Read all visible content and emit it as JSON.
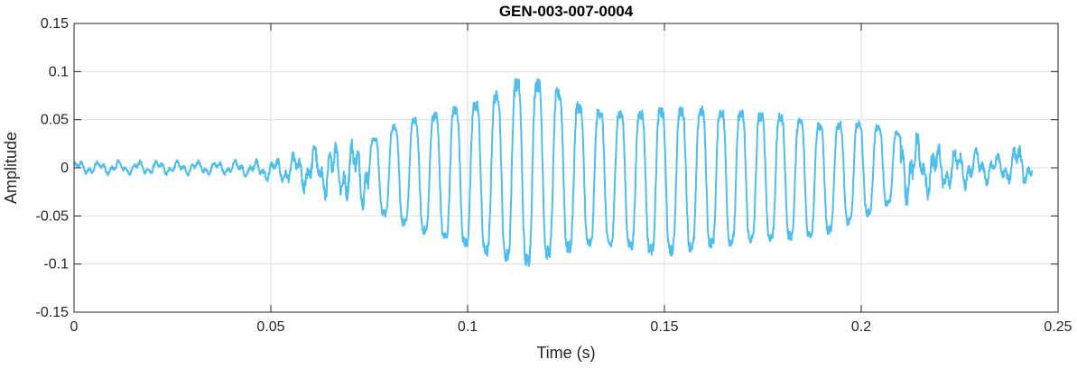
{
  "chart_data": {
    "type": "line",
    "title": "GEN-003-007-0004",
    "xlabel": "Time (s)",
    "ylabel": "Amplitude",
    "xlim": [
      0,
      0.25
    ],
    "ylim": [
      -0.15,
      0.15
    ],
    "x_ticks": [
      0,
      0.05,
      0.1,
      0.15,
      0.2,
      0.25
    ],
    "x_tick_labels": [
      "0",
      "0.05",
      "0.1",
      "0.15",
      "0.2",
      "0.25"
    ],
    "y_ticks": [
      -0.15,
      -0.1,
      -0.05,
      0,
      0.05,
      0.1,
      0.15
    ],
    "y_tick_labels": [
      "-0.15",
      "-0.1",
      "-0.05",
      "0",
      "0.05",
      "0.1",
      "0.15"
    ],
    "grid": true,
    "line_color": "#4DBEEE",
    "series": [
      {
        "x_start": 0,
        "x_end": 0.2435,
        "envelope": {
          "times": [
            0,
            0.02,
            0.04,
            0.05,
            0.055,
            0.06,
            0.065,
            0.07,
            0.075,
            0.08,
            0.09,
            0.1,
            0.105,
            0.11,
            0.115,
            0.12,
            0.13,
            0.14,
            0.15,
            0.16,
            0.17,
            0.18,
            0.19,
            0.2,
            0.21,
            0.22,
            0.23,
            0.235,
            0.24,
            0.2435
          ],
          "max": [
            0.008,
            0.008,
            0.008,
            0.01,
            0.015,
            0.025,
            0.03,
            0.033,
            0.035,
            0.055,
            0.07,
            0.085,
            0.09,
            0.11,
            0.118,
            0.11,
            0.08,
            0.075,
            0.08,
            0.08,
            0.075,
            0.07,
            0.06,
            0.06,
            0.045,
            0.025,
            0.02,
            0.015,
            0.03,
            0.01
          ],
          "min": [
            -0.008,
            -0.008,
            -0.008,
            -0.015,
            -0.02,
            -0.03,
            -0.035,
            -0.04,
            -0.045,
            -0.065,
            -0.085,
            -0.1,
            -0.11,
            -0.118,
            -0.125,
            -0.115,
            -0.1,
            -0.1,
            -0.11,
            -0.1,
            -0.095,
            -0.09,
            -0.085,
            -0.065,
            -0.04,
            -0.03,
            -0.02,
            -0.015,
            -0.025,
            -0.012
          ]
        },
        "voiced_start": 0.075,
        "voiced_end": 0.21,
        "pitch_hz": 196
      }
    ]
  }
}
